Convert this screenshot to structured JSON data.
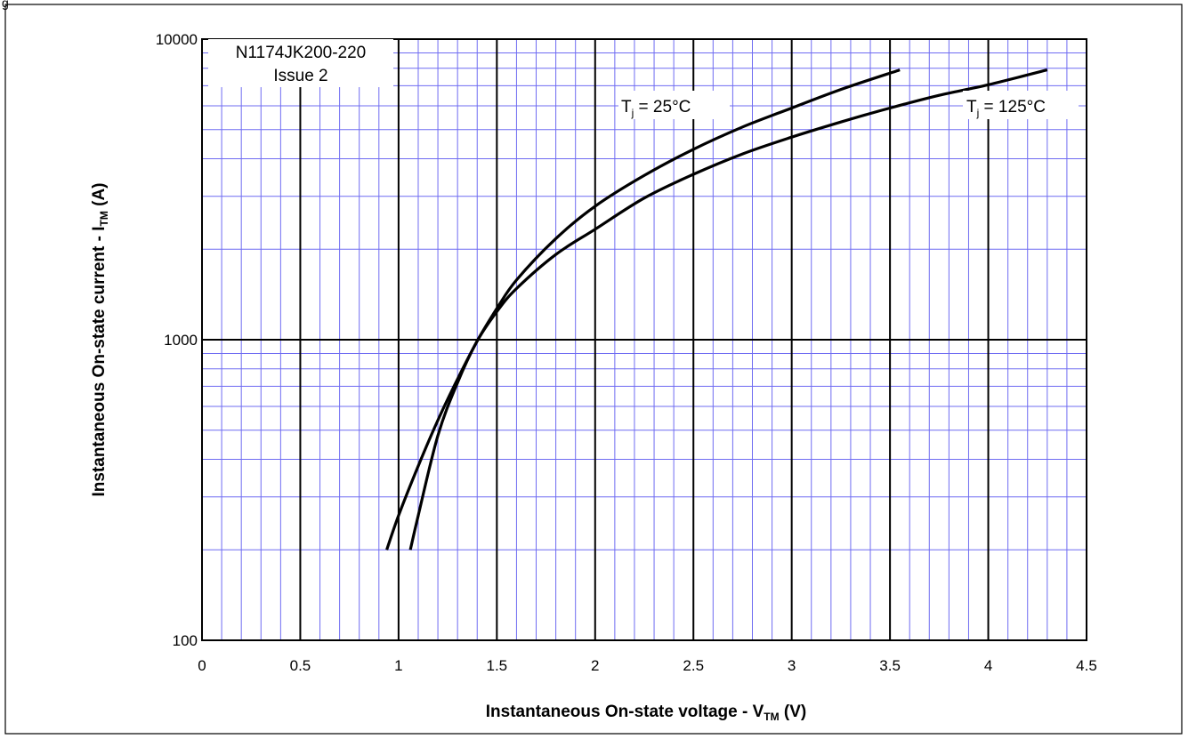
{
  "figure_label": "g",
  "chart_data": {
    "type": "line",
    "xlabel": {
      "prefix": "Instantaneous On-state voltage - V",
      "sub": "TM",
      "suffix": " (V)"
    },
    "ylabel": {
      "prefix": "Instantaneous On-state current - I",
      "sub": "TM",
      "suffix": " (A)"
    },
    "xlim": [
      0,
      4.5
    ],
    "ylim": [
      100,
      10000
    ],
    "yscale": "log",
    "xticks": [
      0,
      0.5,
      1,
      1.5,
      2,
      2.5,
      3,
      3.5,
      4,
      4.5
    ],
    "xtick_labels": [
      "0",
      "0.5",
      "1",
      "1.5",
      "2",
      "2.5",
      "3",
      "3.5",
      "4",
      "4.5"
    ],
    "yticks": [
      100,
      1000,
      10000
    ],
    "ytick_labels": [
      "100",
      "1000",
      "10000"
    ],
    "grid": true,
    "legend": "none",
    "notes": [
      "N1174JK200-220",
      "Issue 2"
    ],
    "series": [
      {
        "label": {
          "prefix": "T",
          "sub": "j",
          "suffix": " = 25°C"
        },
        "x": [
          0.94,
          1.0,
          1.1,
          1.2,
          1.3,
          1.4,
          1.5,
          1.6,
          1.8,
          2.0,
          2.25,
          2.5,
          2.75,
          3.0,
          3.25,
          3.55
        ],
        "y": [
          200,
          260,
          380,
          540,
          740,
          990,
          1270,
          1580,
          2170,
          2780,
          3520,
          4300,
          5100,
          5900,
          6800,
          7900
        ]
      },
      {
        "label": {
          "prefix": "T",
          "sub": "j",
          "suffix": " = 125°C"
        },
        "x": [
          1.06,
          1.1,
          1.2,
          1.3,
          1.4,
          1.5,
          1.6,
          1.8,
          2.0,
          2.25,
          2.5,
          2.75,
          3.0,
          3.25,
          3.5,
          3.75,
          4.0,
          4.3
        ],
        "y": [
          200,
          260,
          480,
          720,
          990,
          1240,
          1480,
          1920,
          2330,
          2960,
          3550,
          4150,
          4720,
          5300,
          5900,
          6500,
          7050,
          7900
        ]
      }
    ]
  }
}
